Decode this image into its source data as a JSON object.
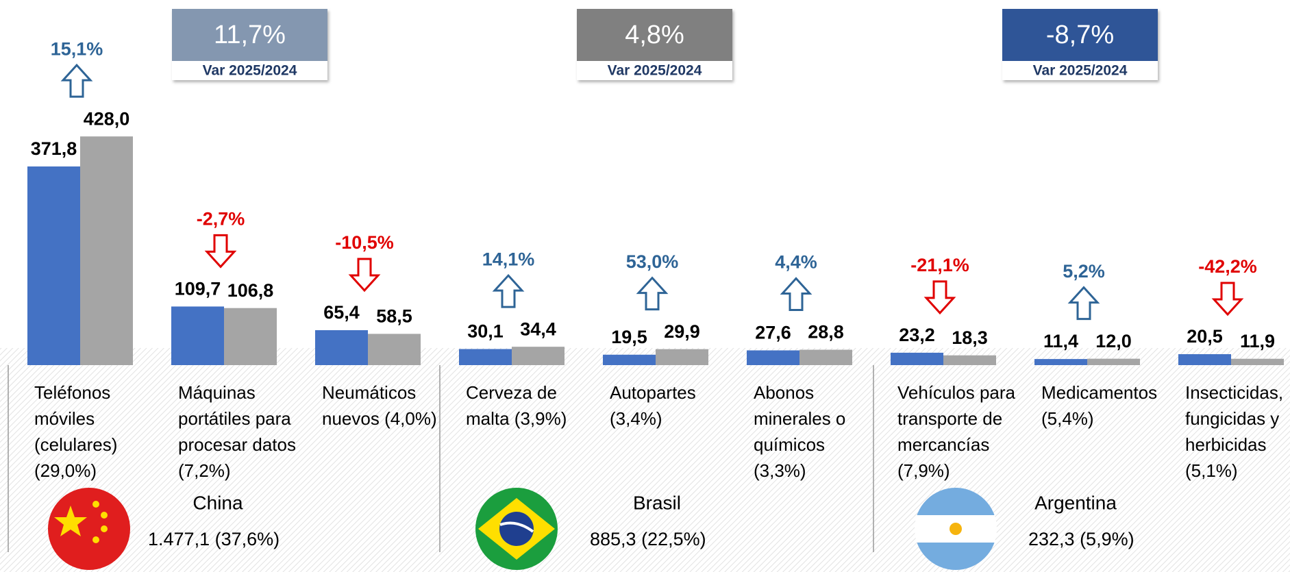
{
  "chart_data": {
    "type": "bar",
    "categories": [
      [
        "Teléfonos",
        "móviles",
        "(celulares)",
        "(29,0%)"
      ],
      [
        "Máquinas",
        "portátiles para",
        "procesar datos",
        "(7,2%)"
      ],
      [
        "Neumáticos",
        "nuevos (4,0%)"
      ],
      [
        "Cerveza de",
        "malta (3,9%)"
      ],
      [
        "Autopartes",
        "(3,4%)"
      ],
      [
        "Abonos",
        "minerales o",
        "químicos",
        "(3,3%)"
      ],
      [
        "Vehículos para",
        "transporte de",
        "mercancías",
        "(7,9%)"
      ],
      [
        "Medicamentos",
        "(5,4%)"
      ],
      [
        "Insecticidas,",
        "fungicidas y",
        "herbicidas",
        "(5,1%)"
      ]
    ],
    "series": [
      {
        "color": "#4472c4",
        "values": [
          371.8,
          109.7,
          65.4,
          30.1,
          19.5,
          27.6,
          23.2,
          11.4,
          20.5
        ],
        "value_labels": [
          "371,8",
          "109,7",
          "65,4",
          "30,1",
          "19,5",
          "27,6",
          "23,2",
          "11,4",
          "20,5"
        ]
      },
      {
        "color": "#a5a5a5",
        "values": [
          428.0,
          106.8,
          58.5,
          34.4,
          29.9,
          28.8,
          18.3,
          12.0,
          11.9
        ],
        "value_labels": [
          "428,0",
          "106,8",
          "58,5",
          "34,4",
          "29,9",
          "28,8",
          "18,3",
          "12,0",
          "11,9"
        ]
      }
    ],
    "changes": [
      15.1,
      -2.7,
      -10.5,
      14.1,
      53.0,
      4.4,
      -21.1,
      5.2,
      -42.2
    ],
    "change_labels": [
      "15,1%",
      "-2,7%",
      "-10,5%",
      "14,1%",
      "53,0%",
      "4,4%",
      "-21,1%",
      "5,2%",
      "-42,2%"
    ],
    "up_color": "#2e6496",
    "down_color": "#e00000",
    "ylim": [
      0,
      550
    ],
    "groups": [
      {
        "name": "China",
        "total": "1.477,1 (37,6%)",
        "change": 11.7,
        "change_label": "11,7%",
        "caption": "Var 2025/2024",
        "color": "#8497b0"
      },
      {
        "name": "Brasil",
        "total": "885,3 (22,5%)",
        "change": 4.8,
        "change_label": "4,8%",
        "caption": "Var 2025/2024",
        "color": "#808080"
      },
      {
        "name": "Argentina",
        "total": "232,3 (5,9%)",
        "change": -8.7,
        "change_label": "-8,7%",
        "caption": "Var 2025/2024",
        "color": "#2f5597"
      }
    ]
  }
}
